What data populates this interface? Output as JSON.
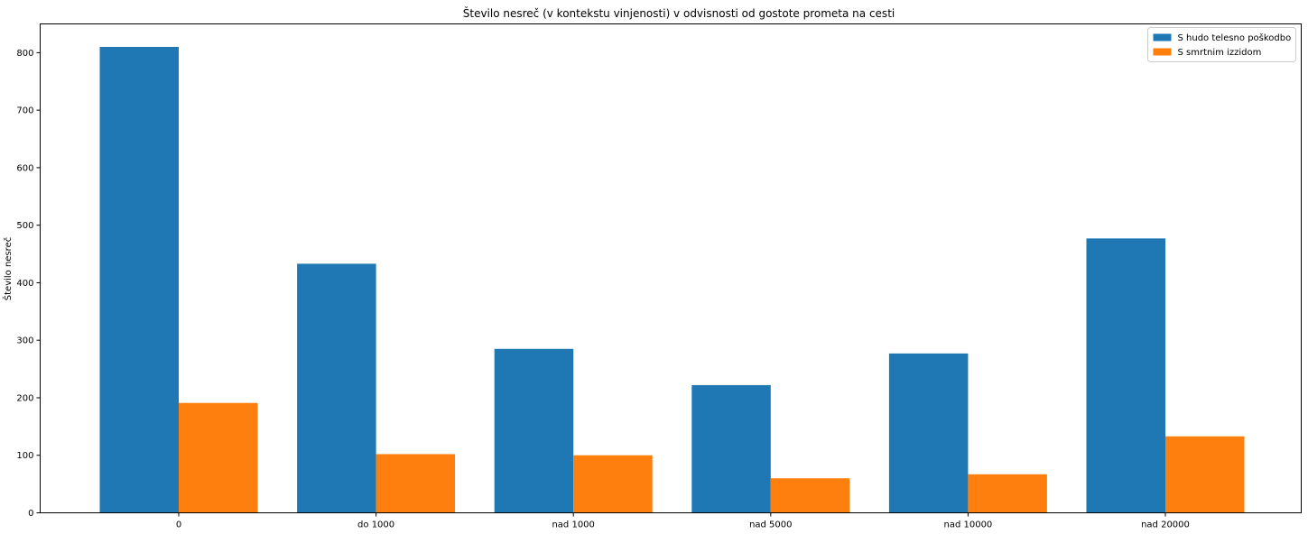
{
  "chart_data": {
    "type": "bar",
    "title": "Število nesreč (v kontekstu vinjenosti) v odvisnosti od gostote prometa na cesti",
    "xlabel": "",
    "ylabel": "Število nesreč",
    "categories": [
      "0",
      "do 1000",
      "nad 1000",
      "nad 5000",
      "nad 10000",
      "nad 20000"
    ],
    "series": [
      {
        "name": "S hudo telesno poškodbo",
        "color": "#1f77b4",
        "values": [
          810,
          433,
          285,
          222,
          277,
          477
        ]
      },
      {
        "name": "S smrtnim izzidom",
        "color": "#ff7f0e",
        "values": [
          191,
          102,
          100,
          60,
          67,
          133
        ]
      }
    ],
    "ylim": [
      0,
      850
    ],
    "yticks": [
      0,
      100,
      200,
      300,
      400,
      500,
      600,
      700,
      800
    ],
    "grid": false,
    "legend_position": "top-right"
  }
}
